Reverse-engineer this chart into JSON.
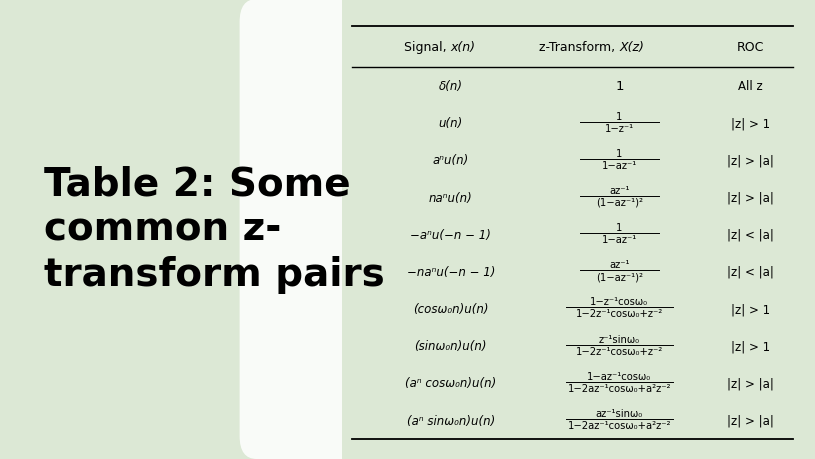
{
  "bg_color": "#dce8d5",
  "table_bg": "#ffffff",
  "title_text": "Table 2: Some\ncommon z-\ntransform pairs",
  "title_fontsize": 28,
  "signals": [
    "δ(n)",
    "u(n)",
    "aⁿu(n)",
    "naⁿu(n)",
    "−aⁿu(−n − 1)",
    "−naⁿu(−n − 1)",
    "(cosω₀n)u(n)",
    "(sinω₀n)u(n)",
    "(aⁿ cosω₀n)u(n)",
    "(aⁿ sinω₀n)u(n)"
  ],
  "ztransforms_num": [
    "1",
    "1",
    "1",
    "az⁻¹",
    "1",
    "az⁻¹",
    "1−z⁻¹cosω₀",
    "z⁻¹sinω₀",
    "1−az⁻¹cosω₀",
    "az⁻¹sinω₀"
  ],
  "ztransforms_den": [
    "",
    "1−z⁻¹",
    "1−az⁻¹",
    "(1−az⁻¹)²",
    "1−az⁻¹",
    "(1−az⁻¹)²",
    "1−2z⁻¹cosω₀+z⁻²",
    "1−2z⁻¹cosω₀+z⁻²",
    "1−2az⁻¹cosω₀+a²z⁻²",
    "1−2az⁻¹cosω₀+a²z⁻²"
  ],
  "rocs": [
    "All z",
    "|z| > 1",
    "|z| > |a|",
    "|z| > |a|",
    "|z| < |a|",
    "|z| < |a|",
    "|z| > 1",
    "|z| > 1",
    "|z| > |a|",
    "|z| > |a|"
  ]
}
